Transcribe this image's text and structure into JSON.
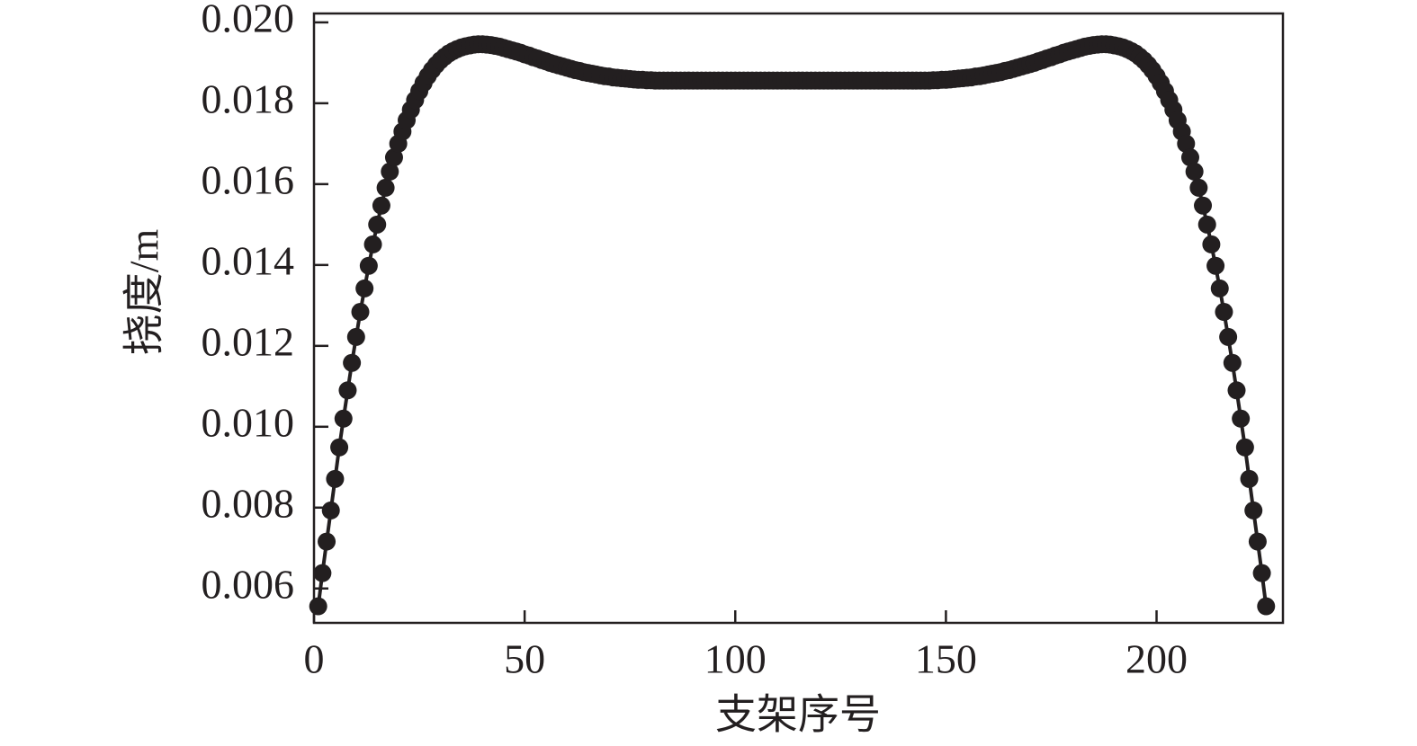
{
  "chart_data": {
    "type": "line",
    "markers": true,
    "color": "#231f20",
    "x_label": "支架序号",
    "y_label": "挠度/m",
    "xlim": [
      0,
      230
    ],
    "ylim": [
      0.00515,
      0.02022
    ],
    "xticks": [
      0,
      50,
      100,
      150,
      200
    ],
    "yticks": [
      0.006,
      0.008,
      {
        "value": 0.01,
        "label": "0.010"
      },
      0.012,
      0.014,
      0.016,
      0.018,
      {
        "value": 0.02,
        "label": "0.020"
      }
    ],
    "x": [
      1,
      2,
      3,
      4,
      5,
      6,
      7,
      8,
      9,
      10,
      11,
      12,
      13,
      14,
      15,
      16,
      17,
      18,
      19,
      20,
      21,
      22,
      23,
      24,
      25,
      26,
      27,
      28,
      29,
      30,
      31,
      32,
      33,
      34,
      35,
      36,
      37,
      38,
      39,
      40,
      41,
      42,
      43,
      44,
      45,
      46,
      47,
      48,
      49,
      50,
      51,
      52,
      53,
      54,
      55,
      56,
      57,
      58,
      59,
      60,
      61,
      62,
      63,
      64,
      65,
      66,
      67,
      68,
      69,
      70,
      71,
      72,
      73,
      74,
      75,
      76,
      77,
      78,
      79,
      80,
      81,
      82,
      83,
      84,
      85,
      86,
      87,
      88,
      89,
      90,
      91,
      92,
      93,
      94,
      95,
      96,
      97,
      98,
      99,
      100,
      101,
      102,
      103,
      104,
      105,
      106,
      107,
      108,
      109,
      110,
      111,
      112,
      113,
      114,
      115,
      116,
      117,
      118,
      119,
      120,
      121,
      122,
      123,
      124,
      125,
      126,
      127,
      128,
      129,
      130,
      131,
      132,
      133,
      134,
      135,
      136,
      137,
      138,
      139,
      140,
      141,
      142,
      143,
      144,
      145,
      146,
      147,
      148,
      149,
      150,
      151,
      152,
      153,
      154,
      155,
      156,
      157,
      158,
      159,
      160,
      161,
      162,
      163,
      164,
      165,
      166,
      167,
      168,
      169,
      170,
      171,
      172,
      173,
      174,
      175,
      176,
      177,
      178,
      179,
      180,
      181,
      182,
      183,
      184,
      185,
      186,
      187,
      188,
      189,
      190,
      191,
      192,
      193,
      194,
      195,
      196,
      197,
      198,
      199,
      200,
      201,
      202,
      203,
      204,
      205,
      206,
      207,
      208,
      209,
      210,
      211,
      212,
      213,
      214,
      215,
      216,
      217,
      218,
      219,
      220,
      221,
      222,
      223,
      224,
      225,
      226
    ],
    "values": [
      0.00556,
      0.00638,
      0.00716,
      0.00793,
      0.00871,
      0.00949,
      0.0102,
      0.0109,
      0.01158,
      0.01222,
      0.01284,
      0.01342,
      0.01398,
      0.01451,
      0.015,
      0.01547,
      0.01591,
      0.01631,
      0.01666,
      0.017,
      0.0173,
      0.01758,
      0.01784,
      0.01808,
      0.0183,
      0.0185,
      0.01867,
      0.01882,
      0.01895,
      0.01906,
      0.01915,
      0.01923,
      0.01929,
      0.01934,
      0.01938,
      0.01941,
      0.01943,
      0.01945,
      0.01946,
      0.01946,
      0.01945,
      0.01944,
      0.01942,
      0.0194,
      0.01937,
      0.01934,
      0.01931,
      0.01928,
      0.01925,
      0.01921,
      0.01918,
      0.01914,
      0.01911,
      0.01907,
      0.01904,
      0.019,
      0.01897,
      0.01894,
      0.01891,
      0.01888,
      0.01885,
      0.01882,
      0.0188,
      0.01877,
      0.01875,
      0.01873,
      0.01871,
      0.01869,
      0.01867,
      0.01866,
      0.01864,
      0.01863,
      0.01862,
      0.01861,
      0.0186,
      0.01859,
      0.01858,
      0.01858,
      0.01857,
      0.01857,
      0.01856,
      0.01856,
      0.01856,
      0.01856,
      0.01856,
      0.01856,
      0.01856,
      0.01856,
      0.01856,
      0.01856,
      0.01856,
      0.01856,
      0.01856,
      0.01856,
      0.01856,
      0.01856,
      0.01856,
      0.01856,
      0.01856,
      0.01856,
      0.01856,
      0.01856,
      0.01856,
      0.01856,
      0.01856,
      0.01856,
      0.01856,
      0.01856,
      0.01856,
      0.01856,
      0.01856,
      0.01856,
      0.01856,
      0.01856,
      0.01856,
      0.01856,
      0.01856,
      0.01856,
      0.01856,
      0.01856,
      0.01856,
      0.01856,
      0.01856,
      0.01856,
      0.01856,
      0.01856,
      0.01856,
      0.01856,
      0.01856,
      0.01856,
      0.01856,
      0.01856,
      0.01856,
      0.01856,
      0.01856,
      0.01856,
      0.01856,
      0.01856,
      0.01856,
      0.01856,
      0.01856,
      0.01856,
      0.01856,
      0.01856,
      0.01856,
      0.01856,
      0.01857,
      0.01857,
      0.01858,
      0.01858,
      0.01859,
      0.0186,
      0.01861,
      0.01862,
      0.01863,
      0.01864,
      0.01866,
      0.01867,
      0.01869,
      0.01871,
      0.01873,
      0.01875,
      0.01877,
      0.0188,
      0.01882,
      0.01885,
      0.01888,
      0.01891,
      0.01894,
      0.01897,
      0.019,
      0.01904,
      0.01907,
      0.01911,
      0.01914,
      0.01918,
      0.01921,
      0.01925,
      0.01928,
      0.01931,
      0.01934,
      0.01937,
      0.0194,
      0.01942,
      0.01944,
      0.01945,
      0.01946,
      0.01946,
      0.01945,
      0.01943,
      0.01941,
      0.01938,
      0.01934,
      0.01929,
      0.01923,
      0.01915,
      0.01906,
      0.01895,
      0.01882,
      0.01867,
      0.0185,
      0.0183,
      0.01808,
      0.01784,
      0.01758,
      0.0173,
      0.017,
      0.01666,
      0.01631,
      0.01591,
      0.01547,
      0.015,
      0.01451,
      0.01398,
      0.01342,
      0.01284,
      0.01222,
      0.01158,
      0.0109,
      0.0102,
      0.00949,
      0.00871,
      0.00793,
      0.00716,
      0.00638,
      0.00556
    ]
  }
}
